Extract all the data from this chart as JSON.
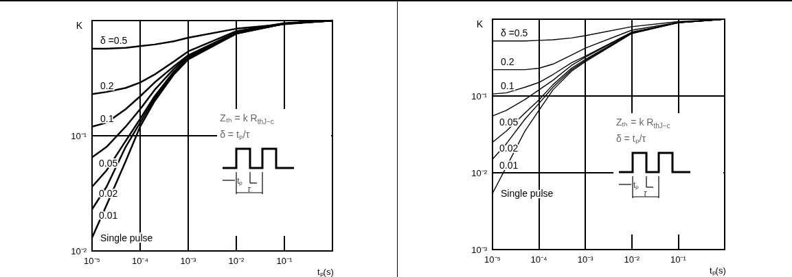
{
  "chart_data": [
    {
      "type": "line",
      "xlabel": "tₚ(s)",
      "ylabel": "K",
      "log": "xy",
      "grid": true,
      "marker": "none",
      "line_style": "solid",
      "x": [
        1e-05,
        2e-05,
        5e-05,
        0.0001,
        0.0002,
        0.0005,
        0.001,
        0.01,
        0.1,
        1
      ],
      "xlim": [
        1e-05,
        1
      ],
      "xticks": [
        {
          "value": 1e-05,
          "label": "10⁻⁵"
        },
        {
          "value": 0.0001,
          "label": "10⁻⁴"
        },
        {
          "value": 0.001,
          "label": "10⁻³"
        },
        {
          "value": 0.01,
          "label": "10⁻²"
        },
        {
          "value": 0.1,
          "label": "10⁻¹"
        },
        {
          "value": 1,
          "label": null
        }
      ],
      "ylim": [
        0.01,
        1
      ],
      "yticks": [
        {
          "value": 0.01,
          "label": "10⁻²"
        },
        {
          "value": 0.1,
          "label": "10⁻¹"
        },
        {
          "value": 1,
          "label": null
        }
      ],
      "series": [
        {
          "name": "δ =0.5",
          "color": "#000000",
          "values": [
            0.57,
            0.57,
            0.58,
            0.6,
            0.62,
            0.66,
            0.71,
            0.85,
            0.93,
            1
          ]
        },
        {
          "name": "0.2",
          "color": "#000000",
          "values": [
            0.23,
            0.24,
            0.26,
            0.29,
            0.34,
            0.44,
            0.54,
            0.81,
            0.95,
            1
          ]
        },
        {
          "name": "0.1",
          "color": "#000000",
          "values": [
            0.12,
            0.13,
            0.17,
            0.22,
            0.29,
            0.4,
            0.5,
            0.79,
            0.94,
            1
          ]
        },
        {
          "name": "0.05",
          "color": "#000000",
          "values": [
            0.065,
            0.08,
            0.12,
            0.17,
            0.25,
            0.38,
            0.49,
            0.78,
            0.94,
            1
          ]
        },
        {
          "name": "0.02",
          "color": "#000000",
          "values": [
            0.036,
            0.05,
            0.09,
            0.14,
            0.22,
            0.36,
            0.48,
            0.78,
            0.94,
            1
          ]
        },
        {
          "name": "0.01",
          "color": "#000000",
          "values": [
            0.023,
            0.036,
            0.08,
            0.13,
            0.21,
            0.35,
            0.47,
            0.77,
            0.94,
            1
          ]
        },
        {
          "name": "Single pulse",
          "color": "#000000",
          "values": [
            0.013,
            0.025,
            0.06,
            0.12,
            0.2,
            0.34,
            0.46,
            0.77,
            0.94,
            1
          ]
        }
      ],
      "annotations": [
        "Zₜₕ = k R$_{thJ−c}$",
        "δ = tₚ/τ",
        "tₚ",
        "τ"
      ]
    },
    {
      "type": "line",
      "xlabel": "tₚ(s)",
      "ylabel": "K",
      "log": "xy",
      "grid": true,
      "marker": "none",
      "line_style": "solid",
      "x": [
        1e-05,
        2e-05,
        5e-05,
        0.0001,
        0.0002,
        0.0005,
        0.001,
        0.01,
        0.1,
        1
      ],
      "xlim": [
        1e-05,
        1
      ],
      "xticks": [
        {
          "value": 1e-05,
          "label": "10⁻⁵"
        },
        {
          "value": 0.0001,
          "label": "10⁻⁴"
        },
        {
          "value": 0.001,
          "label": "10⁻³"
        },
        {
          "value": 0.01,
          "label": "10⁻²"
        },
        {
          "value": 0.1,
          "label": "10⁻¹"
        },
        {
          "value": 1,
          "label": null
        }
      ],
      "ylim": [
        0.001,
        1
      ],
      "yticks": [
        {
          "value": 0.001,
          "label": "10⁻³"
        },
        {
          "value": 0.01,
          "label": "10⁻²"
        },
        {
          "value": 0.1,
          "label": "10⁻¹"
        },
        {
          "value": 1,
          "label": null
        }
      ],
      "series": [
        {
          "name": "δ =0.5",
          "color": "#000000",
          "values": [
            0.52,
            0.52,
            0.52,
            0.53,
            0.54,
            0.57,
            0.61,
            0.8,
            0.93,
            1
          ]
        },
        {
          "name": "0.2",
          "color": "#000000",
          "values": [
            0.22,
            0.22,
            0.22,
            0.23,
            0.26,
            0.34,
            0.42,
            0.72,
            0.91,
            1
          ]
        },
        {
          "name": "0.1",
          "color": "#000000",
          "values": [
            0.106,
            0.11,
            0.13,
            0.15,
            0.19,
            0.27,
            0.33,
            0.68,
            0.9,
            1
          ]
        },
        {
          "name": "0.05",
          "color": "#000000",
          "values": [
            0.055,
            0.065,
            0.09,
            0.12,
            0.16,
            0.25,
            0.32,
            0.67,
            0.9,
            1
          ]
        },
        {
          "name": "0.02",
          "color": "#000000",
          "values": [
            0.025,
            0.035,
            0.06,
            0.089,
            0.14,
            0.23,
            0.3,
            0.66,
            0.9,
            1
          ]
        },
        {
          "name": "0.01",
          "color": "#000000",
          "values": [
            0.015,
            0.024,
            0.05,
            0.08,
            0.13,
            0.22,
            0.29,
            0.66,
            0.9,
            1
          ]
        },
        {
          "name": "Single pulse",
          "color": "#000000",
          "values": [
            0.0054,
            0.012,
            0.035,
            0.065,
            0.12,
            0.21,
            0.28,
            0.65,
            0.9,
            1
          ]
        }
      ],
      "annotations": [
        "Zₜₕ = k R$_{thJ−c}$",
        "δ = tₚ/τ",
        "tₚ",
        "τ"
      ]
    }
  ]
}
